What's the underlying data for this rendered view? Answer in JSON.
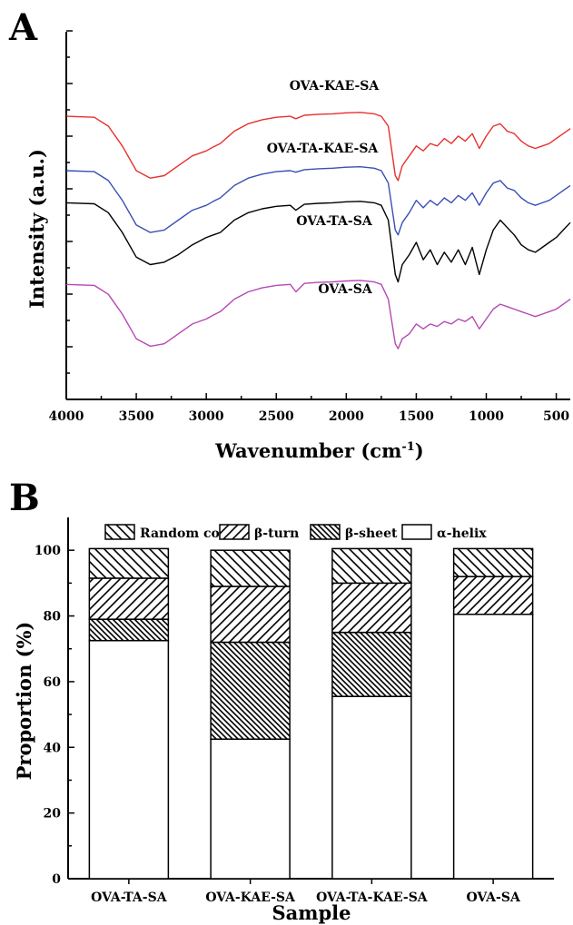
{
  "colors": {
    "OVA-KAE-SA": "#e8302d",
    "OVA-TA-KAE-SA": "#3a4fb5",
    "OVA-TA-SA": "#000000",
    "OVA-SA": "#b548b5"
  },
  "chart_data": [
    {
      "panel": "A",
      "type": "line",
      "xlabel": "Wavenumber (cm-1)",
      "xlabel_main": "Wavenumber (cm",
      "xlabel_sup": "-1",
      "xlabel_close": ")",
      "ylabel": "Intensity (a.u.)",
      "xlim": [
        4000,
        400
      ],
      "xticks": [
        4000,
        3500,
        3000,
        2500,
        2000,
        1500,
        1000,
        500
      ],
      "yticks_labeled": false,
      "series": [
        {
          "name": "OVA-KAE-SA",
          "offset": 3.4,
          "points": [
            [
              4000,
              0.9
            ],
            [
              3800,
              0.88
            ],
            [
              3700,
              0.7
            ],
            [
              3600,
              0.3
            ],
            [
              3500,
              -0.2
            ],
            [
              3400,
              -0.35
            ],
            [
              3300,
              -0.3
            ],
            [
              3200,
              -0.1
            ],
            [
              3100,
              0.1
            ],
            [
              3000,
              0.2
            ],
            [
              2950,
              0.28
            ],
            [
              2900,
              0.35
            ],
            [
              2800,
              0.6
            ],
            [
              2700,
              0.75
            ],
            [
              2600,
              0.83
            ],
            [
              2500,
              0.88
            ],
            [
              2400,
              0.9
            ],
            [
              2360,
              0.85
            ],
            [
              2300,
              0.92
            ],
            [
              2200,
              0.94
            ],
            [
              2100,
              0.95
            ],
            [
              2000,
              0.97
            ],
            [
              1900,
              0.98
            ],
            [
              1800,
              0.95
            ],
            [
              1750,
              0.9
            ],
            [
              1700,
              0.7
            ],
            [
              1650,
              -0.3
            ],
            [
              1630,
              -0.4
            ],
            [
              1600,
              -0.1
            ],
            [
              1550,
              0.1
            ],
            [
              1500,
              0.3
            ],
            [
              1450,
              0.2
            ],
            [
              1400,
              0.35
            ],
            [
              1350,
              0.3
            ],
            [
              1300,
              0.45
            ],
            [
              1250,
              0.35
            ],
            [
              1200,
              0.5
            ],
            [
              1150,
              0.4
            ],
            [
              1100,
              0.55
            ],
            [
              1050,
              0.25
            ],
            [
              1000,
              0.5
            ],
            [
              950,
              0.7
            ],
            [
              900,
              0.75
            ],
            [
              850,
              0.6
            ],
            [
              800,
              0.55
            ],
            [
              750,
              0.4
            ],
            [
              700,
              0.3
            ],
            [
              650,
              0.25
            ],
            [
              600,
              0.3
            ],
            [
              550,
              0.35
            ],
            [
              500,
              0.45
            ],
            [
              450,
              0.55
            ],
            [
              400,
              0.65
            ]
          ]
        },
        {
          "name": "OVA-TA-KAE-SA",
          "offset": 2.3,
          "points": [
            [
              4000,
              0.9
            ],
            [
              3800,
              0.88
            ],
            [
              3700,
              0.7
            ],
            [
              3600,
              0.3
            ],
            [
              3500,
              -0.2
            ],
            [
              3400,
              -0.35
            ],
            [
              3300,
              -0.3
            ],
            [
              3200,
              -0.1
            ],
            [
              3100,
              0.1
            ],
            [
              3000,
              0.2
            ],
            [
              2950,
              0.28
            ],
            [
              2900,
              0.35
            ],
            [
              2800,
              0.6
            ],
            [
              2700,
              0.75
            ],
            [
              2600,
              0.83
            ],
            [
              2500,
              0.88
            ],
            [
              2400,
              0.9
            ],
            [
              2360,
              0.87
            ],
            [
              2300,
              0.92
            ],
            [
              2200,
              0.94
            ],
            [
              2100,
              0.95
            ],
            [
              2000,
              0.97
            ],
            [
              1900,
              0.98
            ],
            [
              1800,
              0.95
            ],
            [
              1750,
              0.9
            ],
            [
              1700,
              0.65
            ],
            [
              1650,
              -0.3
            ],
            [
              1630,
              -0.4
            ],
            [
              1600,
              -0.15
            ],
            [
              1550,
              0.05
            ],
            [
              1500,
              0.3
            ],
            [
              1450,
              0.15
            ],
            [
              1400,
              0.3
            ],
            [
              1350,
              0.2
            ],
            [
              1300,
              0.35
            ],
            [
              1250,
              0.25
            ],
            [
              1200,
              0.4
            ],
            [
              1150,
              0.3
            ],
            [
              1100,
              0.45
            ],
            [
              1050,
              0.2
            ],
            [
              1000,
              0.45
            ],
            [
              950,
              0.65
            ],
            [
              900,
              0.7
            ],
            [
              850,
              0.55
            ],
            [
              800,
              0.5
            ],
            [
              750,
              0.35
            ],
            [
              700,
              0.25
            ],
            [
              650,
              0.2
            ],
            [
              600,
              0.25
            ],
            [
              550,
              0.3
            ],
            [
              500,
              0.4
            ],
            [
              450,
              0.5
            ],
            [
              400,
              0.6
            ]
          ]
        },
        {
          "name": "OVA-TA-SA",
          "offset": 1.6,
          "points": [
            [
              4000,
              0.95
            ],
            [
              3800,
              0.93
            ],
            [
              3700,
              0.75
            ],
            [
              3600,
              0.35
            ],
            [
              3500,
              -0.15
            ],
            [
              3400,
              -0.3
            ],
            [
              3300,
              -0.25
            ],
            [
              3200,
              -0.1
            ],
            [
              3100,
              0.1
            ],
            [
              3000,
              0.25
            ],
            [
              2950,
              0.3
            ],
            [
              2900,
              0.35
            ],
            [
              2800,
              0.6
            ],
            [
              2700,
              0.75
            ],
            [
              2600,
              0.83
            ],
            [
              2500,
              0.88
            ],
            [
              2400,
              0.9
            ],
            [
              2360,
              0.8
            ],
            [
              2300,
              0.92
            ],
            [
              2200,
              0.94
            ],
            [
              2100,
              0.95
            ],
            [
              2000,
              0.97
            ],
            [
              1900,
              0.98
            ],
            [
              1800,
              0.95
            ],
            [
              1750,
              0.9
            ],
            [
              1700,
              0.6
            ],
            [
              1650,
              -0.5
            ],
            [
              1630,
              -0.65
            ],
            [
              1600,
              -0.3
            ],
            [
              1550,
              -0.1
            ],
            [
              1500,
              0.15
            ],
            [
              1450,
              -0.2
            ],
            [
              1400,
              0.0
            ],
            [
              1350,
              -0.3
            ],
            [
              1300,
              -0.05
            ],
            [
              1250,
              -0.25
            ],
            [
              1200,
              0.0
            ],
            [
              1150,
              -0.3
            ],
            [
              1100,
              0.05
            ],
            [
              1050,
              -0.5
            ],
            [
              1000,
              0.0
            ],
            [
              950,
              0.4
            ],
            [
              900,
              0.6
            ],
            [
              850,
              0.45
            ],
            [
              800,
              0.3
            ],
            [
              750,
              0.1
            ],
            [
              700,
              0.0
            ],
            [
              650,
              -0.05
            ],
            [
              600,
              0.05
            ],
            [
              550,
              0.15
            ],
            [
              500,
              0.25
            ],
            [
              450,
              0.4
            ],
            [
              400,
              0.55
            ]
          ]
        },
        {
          "name": "OVA-SA",
          "offset": 0.0,
          "points": [
            [
              4000,
              0.9
            ],
            [
              3800,
              0.88
            ],
            [
              3700,
              0.7
            ],
            [
              3600,
              0.3
            ],
            [
              3500,
              -0.2
            ],
            [
              3400,
              -0.35
            ],
            [
              3300,
              -0.3
            ],
            [
              3200,
              -0.1
            ],
            [
              3100,
              0.1
            ],
            [
              3000,
              0.2
            ],
            [
              2950,
              0.28
            ],
            [
              2900,
              0.35
            ],
            [
              2800,
              0.6
            ],
            [
              2700,
              0.75
            ],
            [
              2600,
              0.83
            ],
            [
              2500,
              0.88
            ],
            [
              2400,
              0.9
            ],
            [
              2360,
              0.75
            ],
            [
              2300,
              0.92
            ],
            [
              2200,
              0.94
            ],
            [
              2100,
              0.95
            ],
            [
              2000,
              0.97
            ],
            [
              1900,
              0.98
            ],
            [
              1800,
              0.95
            ],
            [
              1750,
              0.9
            ],
            [
              1700,
              0.6
            ],
            [
              1650,
              -0.3
            ],
            [
              1630,
              -0.4
            ],
            [
              1600,
              -0.2
            ],
            [
              1550,
              -0.1
            ],
            [
              1500,
              0.1
            ],
            [
              1450,
              0.0
            ],
            [
              1400,
              0.1
            ],
            [
              1350,
              0.05
            ],
            [
              1300,
              0.15
            ],
            [
              1250,
              0.1
            ],
            [
              1200,
              0.2
            ],
            [
              1150,
              0.15
            ],
            [
              1100,
              0.25
            ],
            [
              1050,
              0.0
            ],
            [
              1000,
              0.2
            ],
            [
              950,
              0.4
            ],
            [
              900,
              0.5
            ],
            [
              850,
              0.45
            ],
            [
              800,
              0.4
            ],
            [
              750,
              0.35
            ],
            [
              700,
              0.3
            ],
            [
              650,
              0.25
            ],
            [
              600,
              0.3
            ],
            [
              550,
              0.35
            ],
            [
              500,
              0.4
            ],
            [
              450,
              0.5
            ],
            [
              400,
              0.6
            ]
          ]
        }
      ]
    },
    {
      "panel": "B",
      "type": "bar",
      "stacked": true,
      "xlabel": "Sample",
      "ylabel": "Proportion (%)",
      "ylim": [
        0,
        110
      ],
      "yticks": [
        0,
        20,
        40,
        60,
        80,
        100
      ],
      "categories": [
        "OVA-TA-SA",
        "OVA-KAE-SA",
        "OVA-TA-KAE-SA",
        "OVA-SA"
      ],
      "legend_position": "top",
      "legend_order": [
        "Random coil",
        "β-turn",
        "β-sheet",
        "α-helix"
      ],
      "series": [
        {
          "name": "α-helix",
          "pattern": "none",
          "values": [
            72.5,
            42.5,
            55.5,
            80.5
          ]
        },
        {
          "name": "β-sheet",
          "pattern": "dense-backslash",
          "values": [
            6.5,
            29.5,
            19.5,
            0
          ]
        },
        {
          "name": "β-turn",
          "pattern": "slash",
          "values": [
            12.5,
            17.0,
            15.0,
            11.5
          ]
        },
        {
          "name": "Random coil",
          "pattern": "backslash",
          "values": [
            9.0,
            11.0,
            10.5,
            8.5
          ]
        }
      ]
    }
  ]
}
